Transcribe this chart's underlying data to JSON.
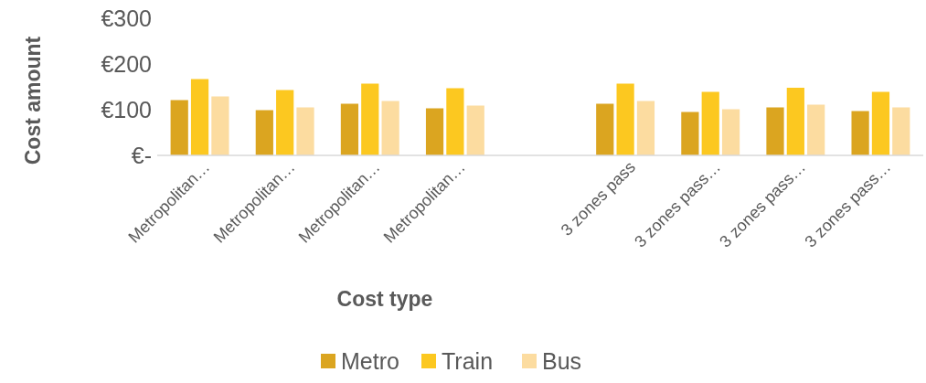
{
  "chart_data": {
    "type": "bar",
    "xlabel": "Cost type",
    "ylabel": "Cost amount",
    "categories": [
      "Metropolitan…",
      "Metropolitan…",
      "Metropolitan…",
      "Metropolitan…",
      null,
      "3 zones pass",
      "3 zones pass…",
      "3 zones pass…",
      "3 zones pass…"
    ],
    "series": [
      {
        "name": "Metro",
        "color": "#dba520",
        "values": [
          121,
          99,
          113,
          103,
          null,
          113,
          95,
          105,
          97
        ]
      },
      {
        "name": "Train",
        "color": "#fcc820",
        "values": [
          167,
          143,
          157,
          147,
          null,
          157,
          139,
          148,
          139
        ]
      },
      {
        "name": "Bus",
        "color": "#fcdca0",
        "values": [
          129,
          105,
          119,
          109,
          null,
          119,
          101,
          111,
          105
        ]
      }
    ],
    "ylim": [
      0,
      300
    ],
    "yticks": [
      {
        "value": 0,
        "label": "€-"
      },
      {
        "value": 100,
        "label": "€100"
      },
      {
        "value": 200,
        "label": "€200"
      },
      {
        "value": 300,
        "label": "€300"
      }
    ],
    "grid": false,
    "legend": "bottom"
  }
}
